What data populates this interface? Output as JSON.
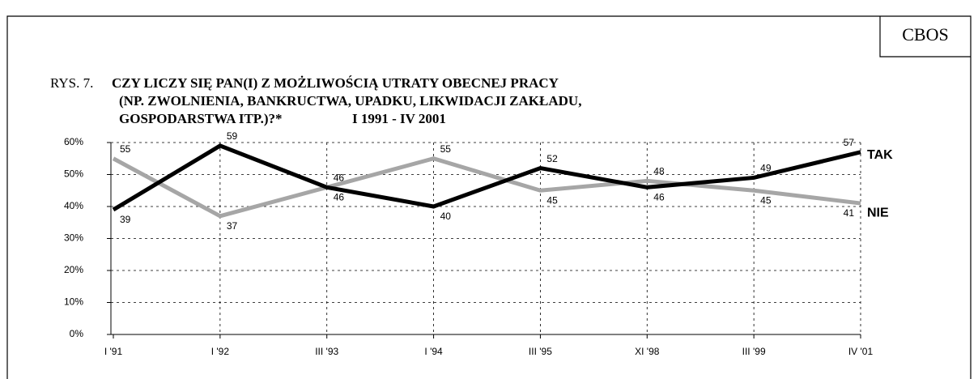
{
  "chart_data": {
    "type": "line",
    "source": "CBOS",
    "figure_label": "RYS. 7.",
    "title": [
      "CZY LICZY SIĘ PAN(I) Z MOŻLIWOŚCIĄ UTRATY OBECNEJ PRACY",
      "(NP. ZWOLNIENIA, BANKRUCTWA, UPADKU, LIKWIDACJI ZAKŁADU,",
      "GOSPODARSTWA ITP.)?*"
    ],
    "subtitle": "I 1991 - IV 2001",
    "categories": [
      "I '91",
      "I '92",
      "III '93",
      "I '94",
      "III '95",
      "XI '98",
      "III '99",
      "IV '01"
    ],
    "series": [
      {
        "name": "TAK",
        "color": "#000000",
        "values": [
          39,
          59,
          46,
          40,
          52,
          46,
          49,
          57
        ]
      },
      {
        "name": "NIE",
        "color": "#a6a6a6",
        "values": [
          55,
          37,
          46,
          55,
          45,
          48,
          45,
          41
        ]
      }
    ],
    "ylim": [
      0,
      60
    ],
    "yticks": [
      {
        "value": 0,
        "label": "0%"
      },
      {
        "value": 10,
        "label": "10%"
      },
      {
        "value": 20,
        "label": "20%"
      },
      {
        "value": 30,
        "label": "30%"
      },
      {
        "value": 40,
        "label": "40%"
      },
      {
        "value": 50,
        "label": "50%"
      },
      {
        "value": 60,
        "label": "60%"
      }
    ],
    "grid": true
  }
}
